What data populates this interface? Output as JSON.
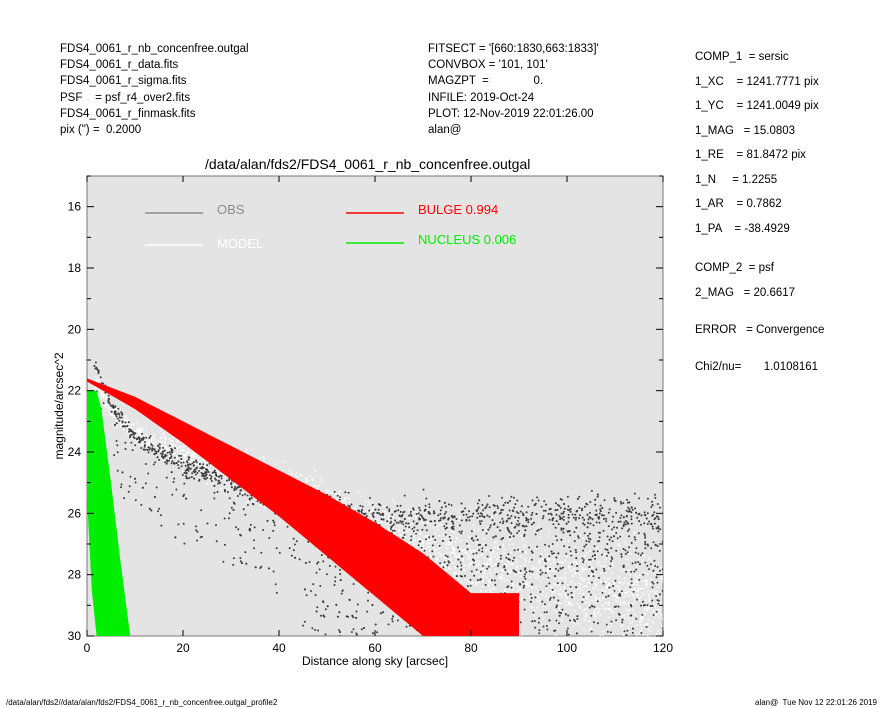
{
  "header_left": [
    "FDS4_0061_r_nb_concenfree.outgal",
    "FDS4_0061_r_data.fits",
    "FDS4_0061_r_sigma.fits",
    "PSF    = psf_r4_over2.fits",
    "FDS4_0061_r_finmask.fits",
    "pix (\") =  0.2000"
  ],
  "header_mid": [
    "FITSECT = '[660:1830,663:1833]'",
    "CONVBOX = '101, 101'",
    "MAGZPT  =              0.",
    "INFILE: 2019-Oct-24",
    "PLOT: 12-Nov-2019 22:01:26.00",
    "alan@"
  ],
  "params": [
    "COMP_1  = sersic",
    "1_XC    = 1241.7771 pix",
    "1_YC    = 1241.0049 pix",
    "1_MAG   = 15.0803",
    "1_RE    = 81.8472 pix",
    "1_N     = 1.2255",
    "1_AR    = 0.7862",
    "1_PA    = -38.4929",
    "",
    "COMP_2  = psf",
    "2_MAG   = 20.6617",
    "",
    "ERROR   = Convergence",
    "",
    "Chi2/nu=       1.0108161"
  ],
  "footer_left": "/data/alan/fds2//data/alan/fds2/FDS4_0061_r_nb_concenfree.outgal_profile2",
  "footer_right": "alan@  Tue Nov 12 22:01:26 2019",
  "chart_data": {
    "type": "scatter",
    "title": "/data/alan/fds2/FDS4_0061_r_nb_concenfree.outgal",
    "xlabel": "Distance along sky [arcsec]",
    "ylabel": "magnitude/arcsec^2",
    "xlim": [
      0,
      120
    ],
    "ylim": [
      30,
      15
    ],
    "y_inverted": true,
    "xticks": [
      "0",
      "20",
      "40",
      "60",
      "80",
      "100",
      "120"
    ],
    "yticks": [
      "16",
      "18",
      "20",
      "22",
      "24",
      "26",
      "28",
      "30"
    ],
    "background": "#e4e4e4",
    "legend": [
      {
        "label": "OBS",
        "color": "#8c8c8c"
      },
      {
        "label": "MODEL",
        "color": "#ffffff"
      },
      {
        "label": "BULGE  0.994",
        "color": "#ff0000"
      },
      {
        "label": "NUCLEUS  0.006",
        "color": "#00ee00"
      }
    ],
    "series": [
      {
        "name": "OBS",
        "color": "#3c3c3c",
        "x": [
          2,
          5,
          10,
          15,
          20,
          30,
          40,
          50,
          60,
          80,
          100,
          120
        ],
        "y": [
          21.2,
          22.5,
          23.5,
          24.0,
          24.4,
          25.0,
          25.5,
          25.8,
          26.0,
          26.0,
          26.0,
          26.0
        ]
      },
      {
        "name": "MODEL",
        "color": "#ffffff",
        "x": [
          2,
          5,
          10,
          20,
          30,
          40,
          60,
          80,
          100,
          120
        ],
        "y": [
          21.8,
          22.6,
          23.4,
          24.1,
          24.6,
          25.2,
          26.6,
          27.6,
          28.4,
          29.0
        ]
      },
      {
        "name": "BULGE",
        "color": "#ff0000",
        "x": [
          0,
          10,
          20,
          30,
          40,
          50,
          60,
          70,
          80
        ],
        "y_bright": [
          21.6,
          22.2,
          23.0,
          23.8,
          24.6,
          25.4,
          26.3,
          27.3,
          28.6
        ],
        "y_faint": [
          21.7,
          22.6,
          23.7,
          24.9,
          26.1,
          27.4,
          28.7,
          30.0,
          31.3
        ]
      },
      {
        "name": "NUCLEUS",
        "color": "#00ee00",
        "x": [
          0,
          1,
          2,
          3,
          5,
          7,
          9
        ],
        "y_bright": [
          22.0,
          22.0,
          22.0,
          22.6,
          25.0,
          27.6,
          30.0
        ],
        "y_faint": [
          25.5,
          28.5,
          30.0,
          30.0,
          30.0,
          30.0,
          30.0
        ]
      }
    ]
  }
}
